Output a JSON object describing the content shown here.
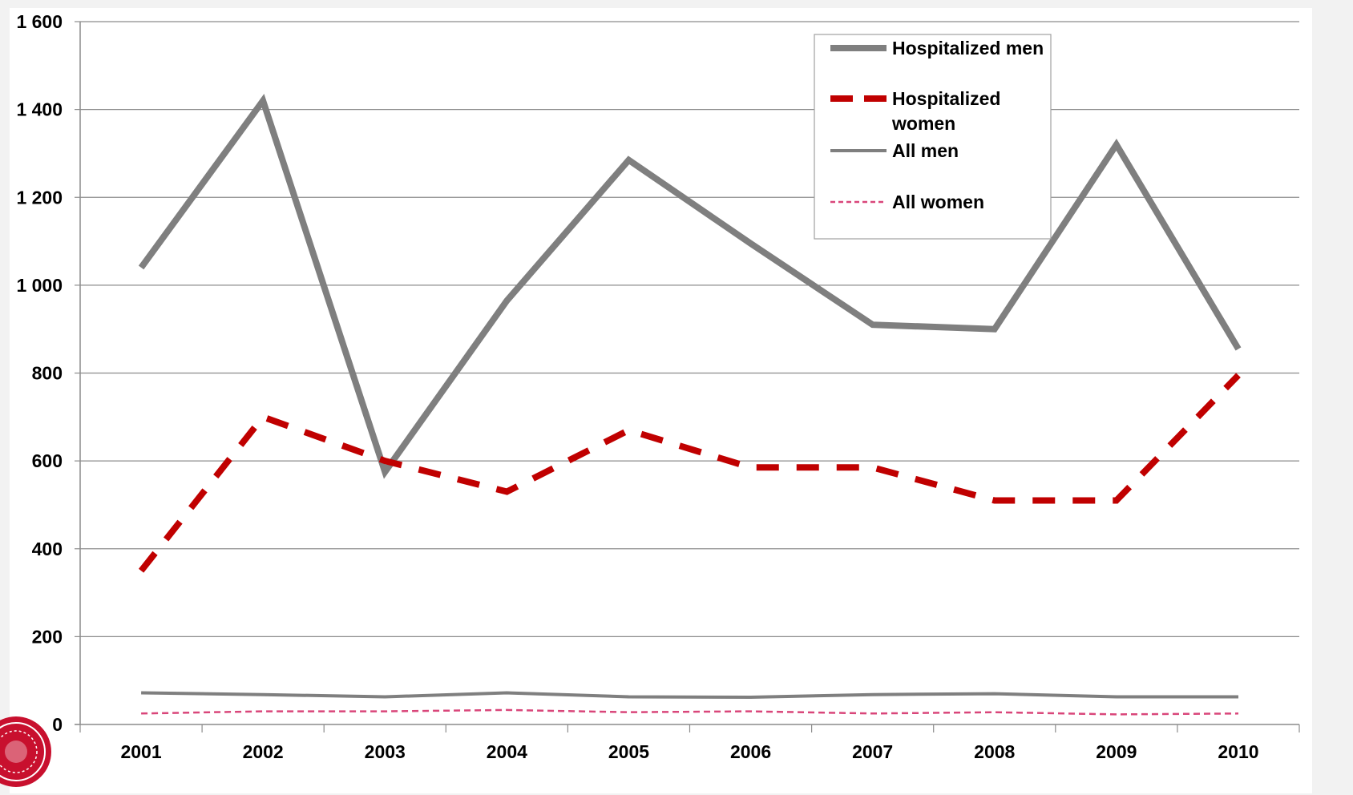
{
  "chart_data": {
    "type": "line",
    "categories": [
      "2001",
      "2002",
      "2003",
      "2004",
      "2005",
      "2006",
      "2007",
      "2008",
      "2009",
      "2010"
    ],
    "ylim": [
      0,
      1600
    ],
    "yticks": [
      0,
      200,
      400,
      600,
      800,
      1000,
      1200,
      1400,
      1600
    ],
    "ytick_labels": [
      "0",
      "200",
      "400",
      "600",
      "800",
      "1 000",
      "1 200",
      "1 400",
      "1 600"
    ],
    "grid": true,
    "legend_position": "top-right",
    "series": [
      {
        "name": "Hospitalized men",
        "legend_lines": [
          "Hospitalized men"
        ],
        "color": "#7f7f7f",
        "style": "solid-thick",
        "values": [
          1040,
          1420,
          575,
          965,
          1285,
          1095,
          910,
          900,
          1320,
          855
        ]
      },
      {
        "name": "Hospitalized women",
        "legend_lines": [
          "Hospitalized",
          "women"
        ],
        "color": "#c00000",
        "style": "dashed-thick",
        "values": [
          350,
          700,
          600,
          530,
          670,
          585,
          585,
          510,
          510,
          795
        ]
      },
      {
        "name": "All men",
        "legend_lines": [
          "All men"
        ],
        "color": "#7f7f7f",
        "style": "solid-thin",
        "values": [
          72,
          68,
          63,
          72,
          63,
          62,
          68,
          70,
          63,
          63
        ]
      },
      {
        "name": "All women",
        "legend_lines": [
          "All women"
        ],
        "color": "#d9467a",
        "style": "dashed-thin",
        "values": [
          25,
          30,
          30,
          33,
          28,
          30,
          25,
          28,
          23,
          25
        ]
      }
    ]
  }
}
